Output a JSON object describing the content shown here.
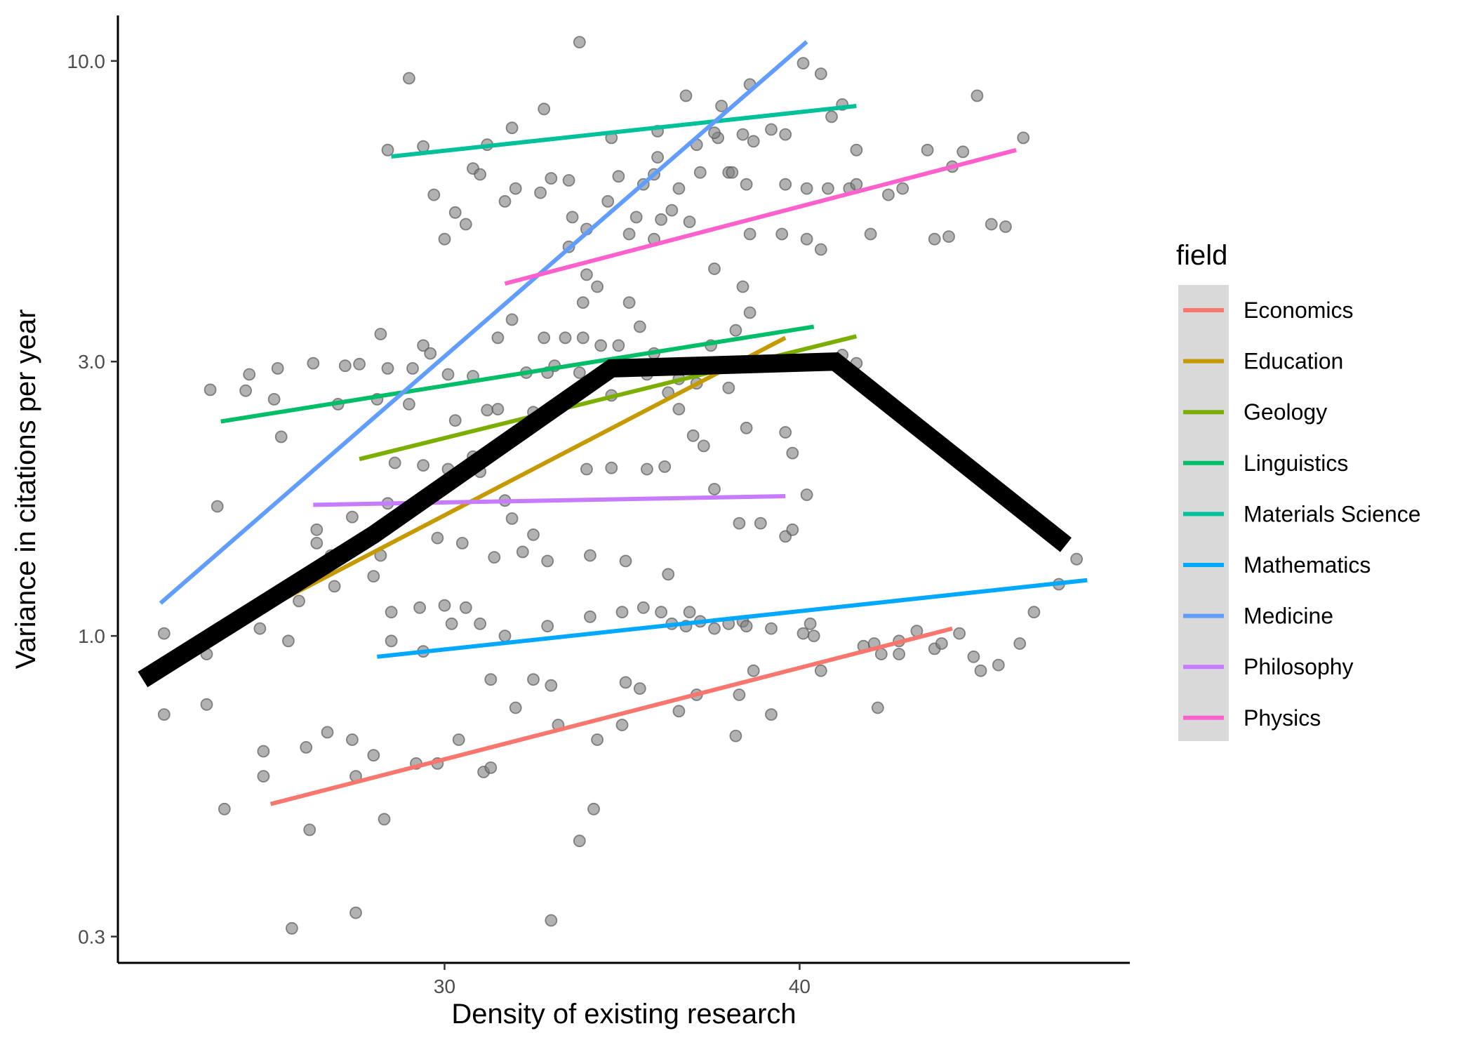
{
  "chart_data": {
    "type": "scatter",
    "title": "",
    "xlabel": "Density of existing research",
    "ylabel": "Variance in citations per year",
    "x_scale": "linear",
    "y_scale": "log10",
    "xlim": [
      20.8,
      49.3
    ],
    "ylim": [
      0.27,
      12.0
    ],
    "x_ticks": [
      {
        "value": 30,
        "label": "30"
      },
      {
        "value": 40,
        "label": "40"
      }
    ],
    "y_ticks": [
      {
        "value": 0.3,
        "label": "0.3"
      },
      {
        "value": 1.0,
        "label": "1.0"
      },
      {
        "value": 3.0,
        "label": "3.0"
      },
      {
        "value": 10.0,
        "label": "10.0"
      }
    ],
    "grid": false,
    "legend": {
      "title": "field",
      "position": "right"
    },
    "point_color": "#7f7f7f",
    "overall_trend": {
      "color": "#000000",
      "points": [
        [
          21.5,
          0.84
        ],
        [
          28.0,
          1.5
        ],
        [
          34.7,
          2.92
        ],
        [
          41.0,
          3.0
        ],
        [
          47.5,
          1.44
        ]
      ]
    },
    "series": [
      {
        "name": "Economics",
        "color": "#F8766D",
        "line": [
          [
            25.1,
            0.51
          ],
          [
            44.3,
            1.03
          ]
        ]
      },
      {
        "name": "Education",
        "color": "#C49A00",
        "line": [
          [
            23.2,
            0.98
          ],
          [
            39.6,
            3.3
          ]
        ]
      },
      {
        "name": "Geology",
        "color": "#7CAE00",
        "line": [
          [
            27.6,
            2.03
          ],
          [
            41.6,
            3.32
          ]
        ]
      },
      {
        "name": "Linguistics",
        "color": "#00BE67",
        "line": [
          [
            23.7,
            2.36
          ],
          [
            40.4,
            3.45
          ]
        ]
      },
      {
        "name": "Materials Science",
        "color": "#00C19A",
        "line": [
          [
            28.5,
            6.82
          ],
          [
            41.6,
            8.35
          ]
        ]
      },
      {
        "name": "Mathematics",
        "color": "#00A9FF",
        "line": [
          [
            28.1,
            0.92
          ],
          [
            48.1,
            1.25
          ]
        ]
      },
      {
        "name": "Medicine",
        "color": "#619CFF",
        "line": [
          [
            22.0,
            1.14
          ],
          [
            40.2,
            10.8
          ]
        ]
      },
      {
        "name": "Philosophy",
        "color": "#C77CFF",
        "line": [
          [
            26.3,
            1.69
          ],
          [
            39.6,
            1.75
          ]
        ]
      },
      {
        "name": "Physics",
        "color": "#FF61CC",
        "line": [
          [
            31.7,
            4.1
          ],
          [
            46.1,
            7.0
          ]
        ]
      }
    ],
    "points": [
      [
        33.8,
        10.78
      ],
      [
        29.0,
        9.33
      ],
      [
        40.1,
        9.91
      ],
      [
        38.6,
        9.1
      ],
      [
        40.6,
        9.5
      ],
      [
        36.8,
        8.7
      ],
      [
        37.8,
        8.35
      ],
      [
        40.9,
        8.0
      ],
      [
        41.2,
        8.4
      ],
      [
        32.8,
        8.25
      ],
      [
        45.0,
        8.7
      ],
      [
        31.9,
        7.65
      ],
      [
        34.7,
        7.35
      ],
      [
        36.0,
        7.55
      ],
      [
        37.1,
        7.15
      ],
      [
        37.7,
        7.35
      ],
      [
        38.4,
        7.45
      ],
      [
        38.7,
        7.25
      ],
      [
        39.2,
        7.6
      ],
      [
        39.6,
        7.45
      ],
      [
        29.4,
        7.1
      ],
      [
        28.4,
        7.0
      ],
      [
        31.2,
        7.15
      ],
      [
        37.6,
        7.5
      ],
      [
        41.6,
        7.0
      ],
      [
        43.6,
        7.0
      ],
      [
        44.6,
        6.95
      ],
      [
        46.3,
        7.35
      ],
      [
        30.8,
        6.5
      ],
      [
        31.0,
        6.35
      ],
      [
        32.0,
        6.0
      ],
      [
        33.0,
        6.25
      ],
      [
        33.5,
        6.2
      ],
      [
        34.9,
        6.3
      ],
      [
        35.6,
        6.1
      ],
      [
        35.9,
        6.35
      ],
      [
        36.0,
        6.8
      ],
      [
        36.6,
        6.0
      ],
      [
        37.2,
        6.4
      ],
      [
        38.0,
        6.4
      ],
      [
        39.6,
        6.1
      ],
      [
        40.2,
        6.0
      ],
      [
        40.8,
        6.0
      ],
      [
        41.4,
        6.0
      ],
      [
        41.6,
        6.1
      ],
      [
        42.5,
        5.85
      ],
      [
        42.9,
        6.0
      ],
      [
        44.3,
        6.55
      ],
      [
        38.1,
        6.4
      ],
      [
        38.5,
        6.1
      ],
      [
        29.7,
        5.85
      ],
      [
        30.3,
        5.45
      ],
      [
        30.6,
        5.2
      ],
      [
        31.7,
        5.7
      ],
      [
        32.7,
        5.9
      ],
      [
        33.6,
        5.35
      ],
      [
        34.0,
        5.1
      ],
      [
        34.6,
        5.7
      ],
      [
        35.2,
        5.0
      ],
      [
        35.4,
        5.35
      ],
      [
        35.9,
        4.9
      ],
      [
        36.1,
        5.3
      ],
      [
        36.4,
        5.5
      ],
      [
        36.9,
        5.25
      ],
      [
        38.6,
        5.0
      ],
      [
        39.5,
        5.0
      ],
      [
        40.2,
        4.9
      ],
      [
        40.6,
        4.7
      ],
      [
        42.0,
        5.0
      ],
      [
        43.8,
        4.9
      ],
      [
        44.2,
        4.95
      ],
      [
        45.4,
        5.2
      ],
      [
        45.8,
        5.15
      ],
      [
        30.0,
        4.9
      ],
      [
        33.5,
        4.75
      ],
      [
        34.0,
        4.25
      ],
      [
        34.3,
        4.05
      ],
      [
        35.2,
        3.8
      ],
      [
        33.9,
        3.8
      ],
      [
        37.6,
        4.35
      ],
      [
        38.4,
        4.05
      ],
      [
        31.9,
        3.55
      ],
      [
        32.8,
        3.3
      ],
      [
        33.4,
        3.3
      ],
      [
        33.9,
        3.3
      ],
      [
        34.4,
        3.2
      ],
      [
        34.9,
        3.2
      ],
      [
        35.5,
        3.45
      ],
      [
        35.9,
        3.1
      ],
      [
        37.5,
        3.2
      ],
      [
        38.2,
        3.4
      ],
      [
        38.6,
        3.65
      ],
      [
        29.4,
        3.2
      ],
      [
        29.6,
        3.1
      ],
      [
        28.2,
        3.35
      ],
      [
        31.5,
        3.3
      ],
      [
        26.3,
        2.98
      ],
      [
        27.2,
        2.95
      ],
      [
        27.6,
        2.97
      ],
      [
        28.4,
        2.92
      ],
      [
        29.1,
        2.92
      ],
      [
        24.5,
        2.85
      ],
      [
        25.3,
        2.92
      ],
      [
        30.1,
        2.85
      ],
      [
        30.8,
        2.83
      ],
      [
        32.3,
        2.87
      ],
      [
        32.9,
        2.87
      ],
      [
        33.1,
        2.95
      ],
      [
        33.8,
        2.87
      ],
      [
        35.7,
        2.85
      ],
      [
        36.6,
        2.8
      ],
      [
        37.1,
        2.75
      ],
      [
        38.0,
        2.7
      ],
      [
        41.2,
        3.08
      ],
      [
        41.6,
        2.98
      ],
      [
        23.4,
        2.68
      ],
      [
        24.4,
        2.67
      ],
      [
        25.2,
        2.58
      ],
      [
        27.0,
        2.53
      ],
      [
        28.1,
        2.58
      ],
      [
        29.0,
        2.53
      ],
      [
        30.3,
        2.37
      ],
      [
        31.2,
        2.47
      ],
      [
        31.5,
        2.48
      ],
      [
        32.5,
        2.45
      ],
      [
        33.5,
        2.55
      ],
      [
        34.7,
        2.62
      ],
      [
        36.3,
        2.65
      ],
      [
        36.6,
        2.48
      ],
      [
        25.4,
        2.22
      ],
      [
        37.0,
        2.23
      ],
      [
        37.3,
        2.14
      ],
      [
        39.6,
        2.26
      ],
      [
        39.8,
        2.08
      ],
      [
        38.5,
        2.3
      ],
      [
        23.6,
        1.68
      ],
      [
        26.4,
        1.53
      ],
      [
        27.4,
        1.61
      ],
      [
        28.4,
        1.7
      ],
      [
        28.6,
        2.0
      ],
      [
        29.4,
        1.98
      ],
      [
        30.1,
        1.95
      ],
      [
        30.8,
        2.05
      ],
      [
        31.0,
        1.93
      ],
      [
        31.7,
        1.72
      ],
      [
        31.9,
        1.6
      ],
      [
        32.5,
        1.5
      ],
      [
        34.0,
        1.95
      ],
      [
        34.7,
        1.96
      ],
      [
        35.7,
        1.95
      ],
      [
        36.2,
        1.97
      ],
      [
        37.6,
        1.8
      ],
      [
        39.6,
        1.49
      ],
      [
        40.2,
        1.76
      ],
      [
        26.4,
        1.45
      ],
      [
        26.8,
        1.38
      ],
      [
        28.2,
        1.38
      ],
      [
        29.8,
        1.48
      ],
      [
        30.5,
        1.45
      ],
      [
        31.4,
        1.37
      ],
      [
        32.2,
        1.4
      ],
      [
        32.9,
        1.35
      ],
      [
        34.1,
        1.38
      ],
      [
        35.1,
        1.35
      ],
      [
        36.3,
        1.28
      ],
      [
        38.3,
        1.57
      ],
      [
        38.9,
        1.57
      ],
      [
        39.8,
        1.53
      ],
      [
        22.1,
        1.01
      ],
      [
        24.8,
        1.03
      ],
      [
        25.9,
        1.15
      ],
      [
        26.9,
        1.22
      ],
      [
        28.0,
        1.27
      ],
      [
        28.5,
        1.1
      ],
      [
        29.3,
        1.12
      ],
      [
        30.0,
        1.13
      ],
      [
        30.2,
        1.05
      ],
      [
        30.6,
        1.12
      ],
      [
        31.0,
        1.05
      ],
      [
        31.7,
        1.0
      ],
      [
        32.9,
        1.04
      ],
      [
        34.1,
        1.08
      ],
      [
        35.0,
        1.1
      ],
      [
        35.6,
        1.12
      ],
      [
        36.1,
        1.1
      ],
      [
        36.4,
        1.05
      ],
      [
        36.8,
        1.04
      ],
      [
        36.9,
        1.1
      ],
      [
        37.2,
        1.06
      ],
      [
        37.6,
        1.03
      ],
      [
        38.0,
        1.05
      ],
      [
        38.4,
        1.06
      ],
      [
        38.5,
        1.04
      ],
      [
        39.2,
        1.03
      ],
      [
        40.1,
        1.01
      ],
      [
        40.3,
        1.05
      ],
      [
        40.4,
        1.0
      ],
      [
        42.3,
        0.93
      ],
      [
        42.8,
        0.98
      ],
      [
        43.3,
        1.02
      ],
      [
        43.8,
        0.95
      ],
      [
        44.0,
        0.97
      ],
      [
        44.5,
        1.01
      ],
      [
        44.9,
        0.92
      ],
      [
        45.1,
        0.87
      ],
      [
        45.6,
        0.89
      ],
      [
        46.2,
        0.97
      ],
      [
        46.6,
        1.1
      ],
      [
        47.3,
        1.23
      ],
      [
        47.8,
        1.36
      ],
      [
        23.3,
        0.93
      ],
      [
        25.6,
        0.98
      ],
      [
        28.5,
        0.98
      ],
      [
        29.4,
        0.94
      ],
      [
        31.3,
        0.84
      ],
      [
        32.5,
        0.84
      ],
      [
        33.0,
        0.82
      ],
      [
        35.1,
        0.83
      ],
      [
        35.5,
        0.81
      ],
      [
        37.1,
        0.79
      ],
      [
        38.3,
        0.79
      ],
      [
        38.7,
        0.87
      ],
      [
        40.6,
        0.87
      ],
      [
        41.8,
        0.96
      ],
      [
        42.1,
        0.97
      ],
      [
        42.8,
        0.93
      ],
      [
        22.1,
        0.73
      ],
      [
        23.3,
        0.76
      ],
      [
        24.9,
        0.63
      ],
      [
        26.1,
        0.64
      ],
      [
        26.7,
        0.68
      ],
      [
        27.4,
        0.66
      ],
      [
        28.0,
        0.62
      ],
      [
        29.8,
        0.6
      ],
      [
        30.4,
        0.66
      ],
      [
        31.1,
        0.58
      ],
      [
        32.0,
        0.75
      ],
      [
        33.2,
        0.7
      ],
      [
        34.3,
        0.66
      ],
      [
        35.0,
        0.7
      ],
      [
        36.6,
        0.74
      ],
      [
        38.2,
        0.67
      ],
      [
        39.2,
        0.73
      ],
      [
        42.2,
        0.75
      ],
      [
        23.8,
        0.5
      ],
      [
        24.9,
        0.57
      ],
      [
        26.2,
        0.46
      ],
      [
        27.5,
        0.57
      ],
      [
        28.3,
        0.48
      ],
      [
        29.2,
        0.6
      ],
      [
        31.3,
        0.59
      ],
      [
        33.8,
        0.44
      ],
      [
        34.2,
        0.5
      ],
      [
        25.7,
        0.31
      ],
      [
        27.5,
        0.33
      ],
      [
        33.0,
        0.32
      ]
    ]
  }
}
